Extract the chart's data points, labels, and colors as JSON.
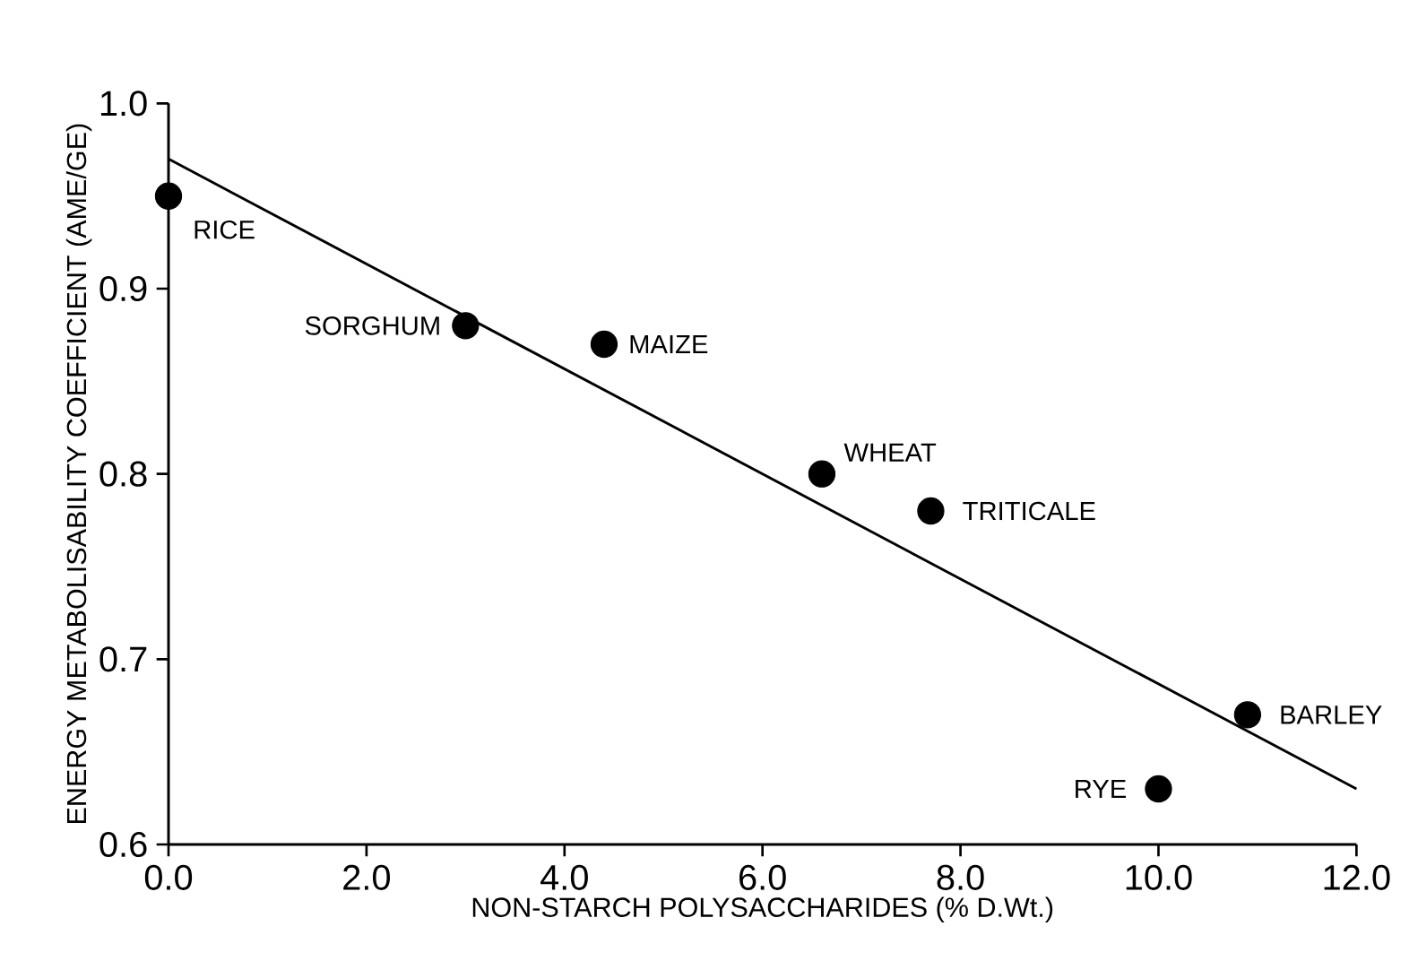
{
  "chart_data": {
    "type": "scatter",
    "xlabel": "NON-STARCH POLYSACCHARIDES (% D.Wt.)",
    "ylabel": "ENERGY METABOLISABILITY COEFFICIENT (AME/GE)",
    "xlim": [
      0,
      12
    ],
    "ylim": [
      0.6,
      1.0
    ],
    "xticks": [
      {
        "value": 0,
        "label": "0.0"
      },
      {
        "value": 2,
        "label": "2.0"
      },
      {
        "value": 4,
        "label": "4.0"
      },
      {
        "value": 6,
        "label": "6.0"
      },
      {
        "value": 8,
        "label": "8.0"
      },
      {
        "value": 10,
        "label": "10.0"
      },
      {
        "value": 12,
        "label": "12.0"
      }
    ],
    "yticks": [
      {
        "value": 0.6,
        "label": "0.6"
      },
      {
        "value": 0.7,
        "label": "0.7"
      },
      {
        "value": 0.8,
        "label": "0.8"
      },
      {
        "value": 0.9,
        "label": "0.9"
      },
      {
        "value": 1.0,
        "label": "1.0"
      }
    ],
    "series": [
      {
        "color": "#000000",
        "marker": "circle",
        "x": [
          0.0,
          3.0,
          4.4,
          6.6,
          7.7,
          10.9,
          10.0
        ],
        "values": [
          0.95,
          0.88,
          0.87,
          0.8,
          0.78,
          0.67,
          0.63
        ]
      },
      {
        "type": "line",
        "color": "#000000",
        "line_style": "solid",
        "marker": "none",
        "x": [
          0,
          12
        ],
        "values": [
          0.97,
          0.63
        ]
      }
    ],
    "annotations": [
      {
        "text": "RICE",
        "x": 0.0,
        "y": 0.95
      },
      {
        "text": "SORGHUM",
        "x": 3.0,
        "y": 0.88
      },
      {
        "text": "MAIZE",
        "x": 4.4,
        "y": 0.87
      },
      {
        "text": "WHEAT",
        "x": 6.6,
        "y": 0.8
      },
      {
        "text": "TRITICALE",
        "x": 7.7,
        "y": 0.78
      },
      {
        "text": "BARLEY",
        "x": 10.9,
        "y": 0.67
      },
      {
        "text": "RYE",
        "x": 10.0,
        "y": 0.63
      }
    ]
  }
}
